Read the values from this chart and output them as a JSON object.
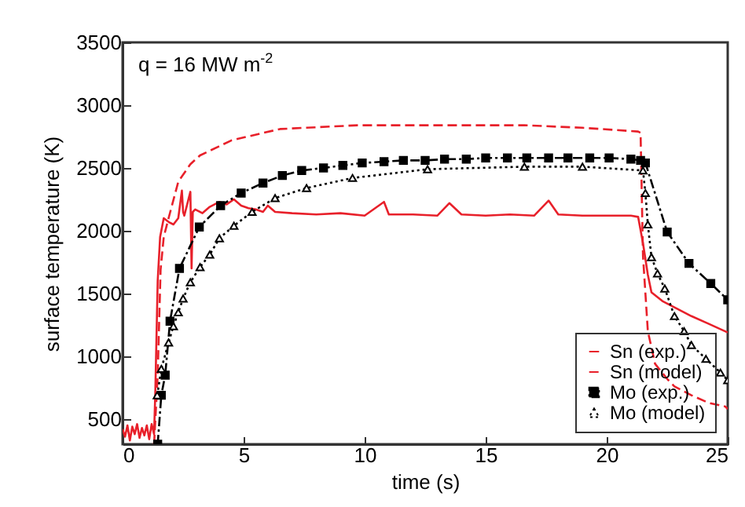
{
  "chart_data": {
    "type": "line",
    "xlabel": "time (s)",
    "ylabel": "surface temperature (K)",
    "annotations": [
      "q = 16 MW m$^{-2}$"
    ],
    "xlim": [
      0,
      25
    ],
    "xticks": [
      0,
      5,
      10,
      15,
      20,
      25
    ],
    "ylim": [
      300,
      3500
    ],
    "yticks": [
      500,
      1000,
      1500,
      2000,
      2500,
      3000,
      3500
    ],
    "grid": false,
    "legend": "bottom right",
    "series": [
      {
        "name": "Sn (exp.)",
        "color": "#e8202a",
        "line_style": "solid",
        "marker": "none",
        "x": [
          0,
          0.1,
          0.2,
          0.3,
          0.4,
          0.5,
          0.6,
          0.7,
          0.8,
          0.9,
          1.0,
          1.1,
          1.2,
          1.3,
          1.35,
          1.45,
          1.55,
          1.7,
          1.9,
          2.1,
          2.3,
          2.45,
          2.5,
          2.55,
          2.8,
          2.85,
          2.9,
          3.0,
          3.3,
          3.6,
          4.0,
          4.3,
          4.6,
          4.9,
          5.2,
          5.5,
          5.8,
          6.0,
          6.3,
          7,
          8,
          9,
          10,
          10.8,
          11,
          12,
          13,
          13.5,
          14,
          15,
          16,
          17,
          17.6,
          18,
          19,
          20,
          21,
          21.3,
          21.5,
          21.7,
          21.85,
          22.3,
          22.8,
          23.5,
          24.2,
          25
        ],
        "values": [
          420,
          360,
          450,
          330,
          440,
          380,
          460,
          350,
          430,
          370,
          450,
          340,
          460,
          380,
          700,
          1600,
          1950,
          2100,
          2070,
          2050,
          2100,
          2320,
          2150,
          2120,
          2310,
          1700,
          2150,
          2170,
          2140,
          2190,
          2230,
          2210,
          2250,
          2200,
          2180,
          2170,
          2150,
          2200,
          2150,
          2140,
          2130,
          2140,
          2120,
          2230,
          2130,
          2130,
          2120,
          2220,
          2130,
          2120,
          2130,
          2120,
          2240,
          2130,
          2120,
          2120,
          2120,
          2110,
          1900,
          1650,
          1510,
          1440,
          1390,
          1320,
          1260,
          1190
        ]
      },
      {
        "name": "Sn (model)",
        "color": "#e8202a",
        "line_style": "dashed",
        "marker": "none",
        "x": [
          1.3,
          1.45,
          1.57,
          1.7,
          1.9,
          2.3,
          2.8,
          3.2,
          4.5,
          6.5,
          9.7,
          13,
          16.6,
          19,
          21.3,
          21.4,
          21.5,
          21.7,
          22.0,
          22.5,
          22.8,
          23.5,
          24.2,
          24.9,
          25
        ],
        "values": [
          300,
          850,
          1690,
          1950,
          2100,
          2390,
          2530,
          2600,
          2720,
          2810,
          2840,
          2840,
          2840,
          2820,
          2790,
          2780,
          1800,
          1200,
          940,
          820,
          760,
          690,
          630,
          600,
          580
        ]
      },
      {
        "name": "Mo (exp.)",
        "color": "#000000",
        "line_style": "dashdot",
        "marker": "square",
        "x": [
          1.45,
          1.6,
          1.76,
          1.96,
          2.35,
          3.17,
          4.05,
          4.9,
          5.8,
          6.6,
          7.4,
          8.3,
          9.1,
          9.9,
          10.8,
          11.6,
          12.5,
          13.3,
          14.2,
          15.0,
          15.9,
          16.7,
          17.6,
          18.4,
          19.3,
          20.1,
          21.0,
          21.4,
          21.6,
          22.5,
          23.4,
          24.3,
          25
        ],
        "values": [
          300,
          690,
          850,
          1280,
          1700,
          2030,
          2200,
          2300,
          2380,
          2440,
          2480,
          2500,
          2520,
          2540,
          2550,
          2560,
          2560,
          2570,
          2570,
          2580,
          2580,
          2580,
          2580,
          2580,
          2580,
          2580,
          2570,
          2560,
          2540,
          1990,
          1740,
          1580,
          1450
        ]
      },
      {
        "name": "Mo (model)",
        "color": "#000000",
        "line_style": "dotted",
        "marker": "triangle",
        "x": [
          1.43,
          1.6,
          1.9,
          2.1,
          2.3,
          2.5,
          2.8,
          3.2,
          3.6,
          4.0,
          4.6,
          5.35,
          6.3,
          7.6,
          9.5,
          12.6,
          16.6,
          19.0,
          21.5,
          21.6,
          21.7,
          21.85,
          22.1,
          22.4,
          22.8,
          23.2,
          23.5,
          24.1,
          24.7,
          25
        ],
        "values": [
          690,
          900,
          1110,
          1240,
          1350,
          1460,
          1590,
          1710,
          1810,
          1940,
          2040,
          2150,
          2260,
          2340,
          2420,
          2490,
          2510,
          2510,
          2480,
          2300,
          2050,
          1790,
          1660,
          1540,
          1320,
          1200,
          1090,
          980,
          870,
          810
        ]
      }
    ]
  }
}
